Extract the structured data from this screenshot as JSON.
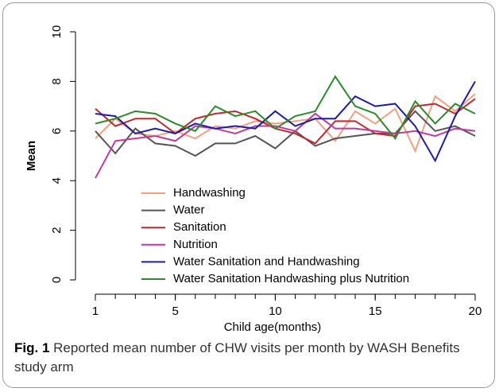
{
  "chart_data": {
    "type": "line",
    "ylabel": "Mean",
    "xlabel": "Child age(months)",
    "x": [
      1,
      2,
      3,
      4,
      5,
      6,
      7,
      8,
      9,
      10,
      11,
      12,
      13,
      14,
      15,
      16,
      17,
      18,
      19,
      20
    ],
    "xlim": [
      1,
      20
    ],
    "xticks": [
      1,
      5,
      10,
      15,
      20
    ],
    "xminorticks": [
      1,
      2,
      3,
      4,
      5,
      6,
      7,
      8,
      9,
      10,
      11,
      12,
      13,
      14,
      15,
      16,
      17,
      18,
      19,
      20
    ],
    "ylim": [
      0,
      10
    ],
    "yticks": [
      0,
      2,
      4,
      6,
      8,
      10
    ],
    "legend": "bottom-left",
    "series": [
      {
        "name": "Handwashing",
        "color": "#f4a07e",
        "values": [
          5.7,
          6.5,
          5.9,
          5.8,
          6.0,
          5.7,
          6.2,
          6.1,
          6.4,
          6.3,
          6.4,
          6.5,
          5.6,
          6.8,
          6.3,
          6.9,
          5.2,
          7.4,
          6.8,
          7.5
        ]
      },
      {
        "name": "Water",
        "color": "#555555",
        "values": [
          6.0,
          5.1,
          6.1,
          5.5,
          5.4,
          5.0,
          5.5,
          5.5,
          5.8,
          5.3,
          6.0,
          5.4,
          5.7,
          5.8,
          5.9,
          5.9,
          6.8,
          6.0,
          6.2,
          5.8
        ]
      },
      {
        "name": "Sanitation",
        "color": "#c0282d",
        "values": [
          6.9,
          6.2,
          6.5,
          6.5,
          5.9,
          6.5,
          6.7,
          6.8,
          6.5,
          6.1,
          5.9,
          5.5,
          6.4,
          6.4,
          5.9,
          5.8,
          7.0,
          7.1,
          6.7,
          7.3
        ]
      },
      {
        "name": "Nutrition",
        "color": "#c43a9b",
        "values": [
          4.1,
          5.6,
          5.7,
          5.8,
          5.6,
          6.2,
          6.1,
          5.9,
          6.2,
          6.2,
          6.0,
          6.7,
          6.1,
          6.1,
          6.0,
          5.9,
          6.0,
          5.8,
          6.1,
          6.0
        ]
      },
      {
        "name": "Water Sanitation and Handwashing",
        "color": "#1c1cab",
        "values": [
          6.7,
          6.6,
          5.9,
          6.1,
          5.9,
          6.3,
          6.1,
          6.2,
          6.1,
          6.8,
          6.2,
          6.5,
          6.5,
          7.4,
          7.0,
          7.1,
          6.2,
          4.8,
          6.6,
          8.0
        ]
      },
      {
        "name": "Water Sanitation Handwashing plus Nutrition",
        "color": "#2b8c2b",
        "values": [
          6.3,
          6.5,
          6.8,
          6.7,
          6.3,
          6.0,
          7.0,
          6.6,
          6.8,
          6.1,
          6.6,
          6.8,
          8.2,
          7.0,
          6.7,
          5.7,
          7.2,
          6.3,
          7.1,
          6.7
        ]
      }
    ]
  },
  "caption": {
    "label": "Fig. 1",
    "text": "Reported mean number of CHW visits per month by WASH Benefits study arm"
  }
}
